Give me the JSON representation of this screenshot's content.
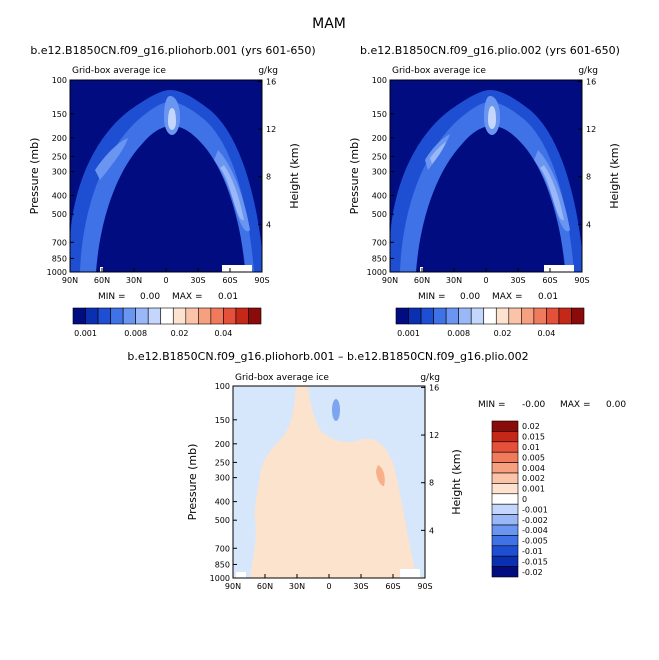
{
  "figure": {
    "title": "MAM"
  },
  "colors": {
    "bg_dark": "#000c80",
    "b1": "#0a2fb0",
    "b2": "#1e4fd2",
    "b3": "#3f72e6",
    "b4": "#6a95f0",
    "b5": "#9ab8f7",
    "b6": "#c4d6fb",
    "diff_bg": "#d6e6fb",
    "diff_pos": "#fce3cd",
    "diff_pos2": "#f7b08a",
    "diff_neg": "#7da4ef",
    "white": "#ffffff"
  },
  "chart_data": [
    {
      "type": "heatmap",
      "title": "b.e12.B1850CN.f09_g16.pliohorb.001 (yrs 601-650)",
      "panel_label": "Grid-box average ice",
      "units": "g/kg",
      "ylabel": "Pressure (mb)",
      "ylabel_right": "Height (km)",
      "x_ticks": [
        "90N",
        "60N",
        "30N",
        "0",
        "30S",
        "60S",
        "90S"
      ],
      "y_ticks": [
        "100",
        "150",
        "200",
        "250",
        "300",
        "400",
        "500",
        "700",
        "850",
        "1000"
      ],
      "y_values": [
        100,
        150,
        200,
        250,
        300,
        400,
        500,
        700,
        850,
        1000
      ],
      "height_ticks": [
        "16",
        "12",
        "8",
        "4"
      ],
      "xlim": [
        90,
        -90
      ],
      "ylim": [
        100,
        1000
      ],
      "min_label": "MIN =",
      "min_value": "0.00",
      "max_label": "MAX =",
      "max_value": "0.01",
      "colorbar_labels": [
        "0.001",
        "0.008",
        "0.02",
        "0.04"
      ],
      "colorbar_colors": [
        "#000c80",
        "#0a2fb0",
        "#1e4fd2",
        "#3f72e6",
        "#6a95f0",
        "#9ab8f7",
        "#c4d6fb",
        "#ffffff",
        "#fde2d0",
        "#fbc3a8",
        "#f7a080",
        "#f07a5c",
        "#e4503a",
        "#c62818",
        "#8b0a0a"
      ]
    },
    {
      "type": "heatmap",
      "title": "b.e12.B1850CN.f09_g16.plio.002 (yrs 601-650)",
      "panel_label": "Grid-box average ice",
      "units": "g/kg",
      "ylabel": "Pressure (mb)",
      "ylabel_right": "Height (km)",
      "x_ticks": [
        "90N",
        "60N",
        "30N",
        "0",
        "30S",
        "60S",
        "90S"
      ],
      "y_ticks": [
        "100",
        "150",
        "200",
        "250",
        "300",
        "400",
        "500",
        "700",
        "850",
        "1000"
      ],
      "y_values": [
        100,
        150,
        200,
        250,
        300,
        400,
        500,
        700,
        850,
        1000
      ],
      "height_ticks": [
        "16",
        "12",
        "8",
        "4"
      ],
      "xlim": [
        90,
        -90
      ],
      "ylim": [
        100,
        1000
      ],
      "min_label": "MIN =",
      "min_value": "0.00",
      "max_label": "MAX =",
      "max_value": "0.01",
      "colorbar_labels": [
        "0.001",
        "0.008",
        "0.02",
        "0.04"
      ],
      "colorbar_colors": [
        "#000c80",
        "#0a2fb0",
        "#1e4fd2",
        "#3f72e6",
        "#6a95f0",
        "#9ab8f7",
        "#c4d6fb",
        "#ffffff",
        "#fde2d0",
        "#fbc3a8",
        "#f7a080",
        "#f07a5c",
        "#e4503a",
        "#c62818",
        "#8b0a0a"
      ]
    },
    {
      "type": "heatmap",
      "title": "b.e12.B1850CN.f09_g16.pliohorb.001 – b.e12.B1850CN.f09_g16.plio.002",
      "panel_label": "Grid-box average ice",
      "units": "g/kg",
      "ylabel": "Pressure (mb)",
      "ylabel_right": "Height (km)",
      "x_ticks": [
        "90N",
        "60N",
        "30N",
        "0",
        "30S",
        "60S",
        "90S"
      ],
      "y_ticks": [
        "100",
        "150",
        "200",
        "250",
        "300",
        "400",
        "500",
        "700",
        "850",
        "1000"
      ],
      "y_values": [
        100,
        150,
        200,
        250,
        300,
        400,
        500,
        700,
        850,
        1000
      ],
      "height_ticks": [
        "16",
        "12",
        "8",
        "4"
      ],
      "xlim": [
        90,
        -90
      ],
      "ylim": [
        100,
        1000
      ],
      "min_label": "MIN =",
      "min_value": "-0.00",
      "max_label": "MAX =",
      "max_value": "0.00",
      "colorbar_labels": [
        "0.02",
        "0.015",
        "0.01",
        "0.005",
        "0.004",
        "0.002",
        "0.001",
        "0",
        "-0.001",
        "-0.002",
        "-0.004",
        "-0.005",
        "-0.01",
        "-0.015",
        "-0.02"
      ],
      "colorbar_colors": [
        "#8b0a0a",
        "#c62818",
        "#e4503a",
        "#f07a5c",
        "#f7a080",
        "#fbc3a8",
        "#fde2d0",
        "#ffffff",
        "#c4d6fb",
        "#9ab8f7",
        "#6a95f0",
        "#3f72e6",
        "#1e4fd2",
        "#0a2fb0",
        "#000c80"
      ]
    }
  ]
}
